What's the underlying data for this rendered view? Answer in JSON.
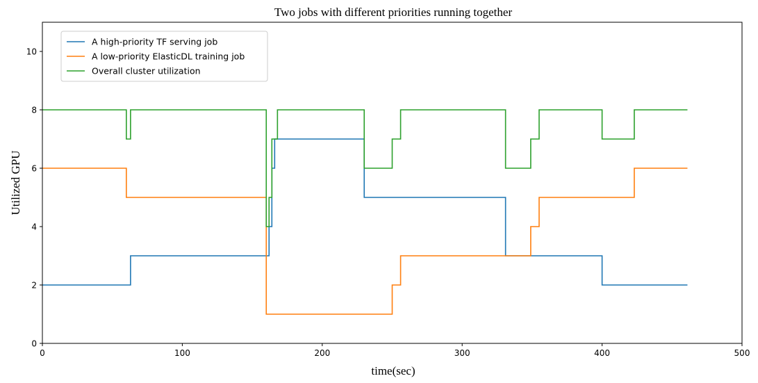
{
  "chart_data": {
    "type": "line",
    "step": "post",
    "title": "Two jobs with different priorities running together",
    "xlabel": "time(sec)",
    "ylabel": "Utilized GPU",
    "xlim": [
      0,
      500
    ],
    "ylim": [
      0,
      11
    ],
    "xticks": [
      0,
      100,
      200,
      300,
      400,
      500
    ],
    "yticks": [
      0,
      2,
      4,
      6,
      8,
      10
    ],
    "grid": false,
    "legend_position": "top-left",
    "series": [
      {
        "name": "A high-priority TF serving job",
        "color": "#1f77b4",
        "points": [
          [
            0,
            2
          ],
          [
            63,
            3
          ],
          [
            162,
            4
          ],
          [
            164,
            6
          ],
          [
            166,
            7
          ],
          [
            230,
            5
          ],
          [
            331,
            3
          ],
          [
            400,
            2
          ],
          [
            461,
            2
          ]
        ]
      },
      {
        "name": "A low-priority ElasticDL training job",
        "color": "#ff7f0e",
        "points": [
          [
            0,
            6
          ],
          [
            60,
            5
          ],
          [
            160,
            1
          ],
          [
            250,
            2
          ],
          [
            256,
            3
          ],
          [
            349,
            4
          ],
          [
            355,
            5
          ],
          [
            423,
            6
          ],
          [
            461,
            6
          ]
        ]
      },
      {
        "name": "Overall cluster utilization",
        "color": "#2ca02c",
        "points": [
          [
            0,
            8
          ],
          [
            60,
            7
          ],
          [
            63,
            8
          ],
          [
            160,
            4
          ],
          [
            162,
            5
          ],
          [
            164,
            7
          ],
          [
            168,
            8
          ],
          [
            230,
            6
          ],
          [
            250,
            7
          ],
          [
            256,
            8
          ],
          [
            331,
            6
          ],
          [
            349,
            7
          ],
          [
            355,
            8
          ],
          [
            400,
            7
          ],
          [
            423,
            8
          ],
          [
            461,
            8
          ]
        ]
      }
    ]
  }
}
